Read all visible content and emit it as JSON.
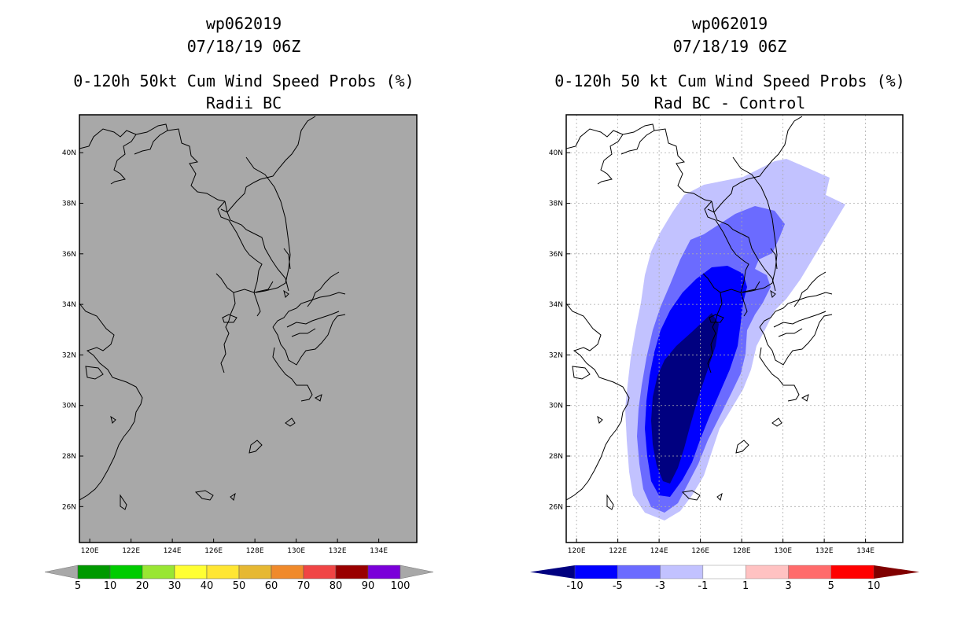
{
  "left_panel": {
    "storm_id": "wp062019",
    "datetime": "07/18/19 06Z",
    "title": "0-120h 50kt Cum Wind Speed Probs (%)",
    "subtitle": "Radii BC",
    "map_fill": "#a8a8a8",
    "colorbar": {
      "labels": [
        "5",
        "10",
        "20",
        "30",
        "40",
        "50",
        "60",
        "70",
        "80",
        "90",
        "100"
      ],
      "colors": [
        "#009900",
        "#00cc00",
        "#99e633",
        "#ffff33",
        "#ffe633",
        "#e6b833",
        "#f08a2b",
        "#f04545",
        "#990000",
        "#7a00d9"
      ],
      "end_color": "#a8a8a8"
    }
  },
  "right_panel": {
    "storm_id": "wp062019",
    "datetime": "07/18/19 06Z",
    "title": "0-120h 50 kt Cum Wind Speed Probs (%)",
    "subtitle": "Rad BC - Control",
    "colorbar": {
      "labels": [
        "-10",
        "-5",
        "-3",
        "-1",
        "1",
        "3",
        "5",
        "10"
      ],
      "colors": [
        "#0000ff",
        "#6b6bff",
        "#c2c2ff",
        "#ffffff",
        "#ffc2c2",
        "#ff6b6b",
        "#ff0000"
      ],
      "low_end_color": "#000080",
      "high_end_color": "#800000"
    }
  },
  "axes": {
    "lon_labels": [
      "120E",
      "122E",
      "124E",
      "126E",
      "128E",
      "130E",
      "132E",
      "134E"
    ],
    "lat_labels": [
      "40N",
      "38N",
      "36N",
      "34N",
      "32N",
      "30N",
      "28N",
      "26N"
    ],
    "lon_values": [
      120,
      122,
      124,
      126,
      128,
      130,
      132,
      134
    ],
    "lat_values": [
      40,
      38,
      36,
      34,
      32,
      30,
      28,
      26
    ]
  }
}
